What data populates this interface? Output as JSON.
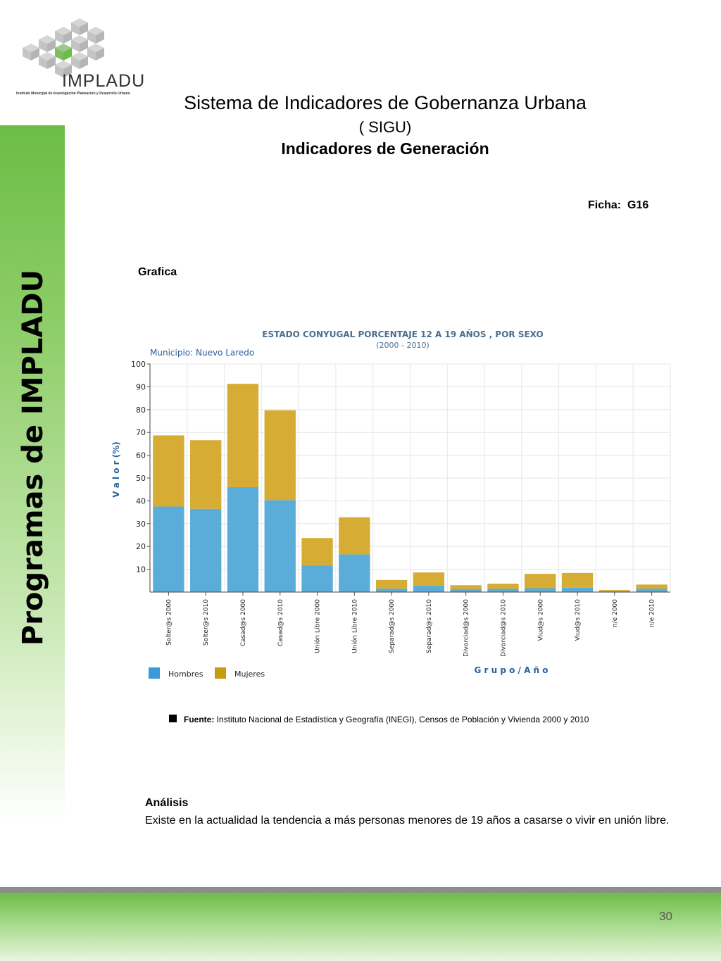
{
  "logo": {
    "name": "IMPLADU",
    "subtitle": "Instituto Municipal de Investigación Planeación y Desarrollo Urbano",
    "colors": {
      "cube_gray": "#b5b5b5",
      "cube_green": "#6cbd45"
    }
  },
  "sidebar": {
    "label": "Programas de  IMPLADU",
    "color": "#6cbd45"
  },
  "header": {
    "title": "Sistema de Indicadores de Gobernanza Urbana",
    "subtitle": "( SIGU)",
    "section": "Indicadores de Generación"
  },
  "ficha": "Ficha:  G16",
  "grafica_label": "Grafica",
  "chart_data": {
    "type": "bar",
    "stacked": true,
    "title": "ESTADO CONYUGAL PORCENTAJE  12 A 19 AÑOS , POR SEXO",
    "subtitle": "(2000 - 2010)",
    "municipio": "Municipio: Nuevo Laredo",
    "ylabel": "V a l o r (%)",
    "xlabel": "G r u p o / A ñ o",
    "ylim": [
      0,
      100
    ],
    "yticks": [
      10,
      20,
      30,
      40,
      50,
      60,
      70,
      80,
      90,
      100
    ],
    "grid": true,
    "legend_position": "bottom-left",
    "categories": [
      "Solter@s 2000",
      "Solter@s 2010",
      "Casad@s 2000",
      "Casad@s 2010",
      "Unión Libre 2000",
      "Unión Libre 2010",
      "Separad@s 2000",
      "Separad@s 2010",
      "Divorciad@s 2000",
      "Divorciad@s 2010",
      "Viud@s 2000",
      "Viud@s 2010",
      "n/e 2000",
      "n/e 2010"
    ],
    "series": [
      {
        "name": "Hombres",
        "color": "#3a9bd5",
        "fill": "#5badd9",
        "values": [
          37.5,
          36.5,
          46,
          40.3,
          11.7,
          16.5,
          1.5,
          2.8,
          1.3,
          1.4,
          1.7,
          1.9,
          0.4,
          1.5
        ]
      },
      {
        "name": "Mujeres",
        "color": "#c89b10",
        "fill": "#d6ac35",
        "values": [
          31.2,
          30.1,
          45.3,
          39.4,
          12,
          16.3,
          3.8,
          5.8,
          1.7,
          2.3,
          6.3,
          6.5,
          0.5,
          1.8
        ]
      }
    ],
    "colors": {
      "title": "#4a6f90",
      "axis_label": "#2a5fa0",
      "grid": "#e6e6e6"
    }
  },
  "source": {
    "label": "Fuente:",
    "text": "Instituto Nacional de Estadística y Geografía (INEGI), Censos de Población y Vivienda 2000 y 2010"
  },
  "analysis": {
    "heading": "Análisis",
    "text": "Existe en la actualidad la tendencia a más personas menores de 19 años a casarse o vivir en unión libre."
  },
  "page_number": "30"
}
